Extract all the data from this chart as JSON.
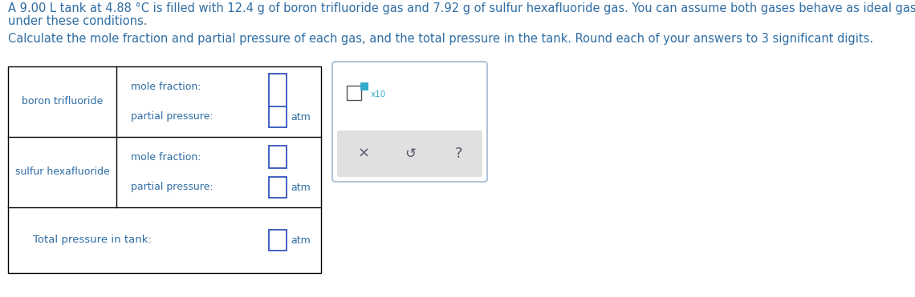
{
  "title_line1": "A 9.00 L tank at 4.88 °C is filled with 12.4 g of boron trifluoride gas and 7.92 g of sulfur hexafluoride gas. You can assume both gases behave as ideal gases",
  "title_line2": "under these conditions.",
  "subtitle": "Calculate the mole fraction and partial pressure of each gas, and the total pressure in the tank. Round each of your answers to 3 significant digits.",
  "row1_label": "boron trifluoride",
  "row1_mole_fraction_label": "mole fraction:",
  "row1_partial_pressure_label": "partial pressure:",
  "row2_label": "sulfur hexafluoride",
  "row2_mole_fraction_label": "mole fraction:",
  "row2_partial_pressure_label": "partial pressure:",
  "total_label": "Total pressure in tank:",
  "atm_label": "atm",
  "text_color": "#2e6da4",
  "table_border_color": "#000000",
  "input_box_color": "#3355bb",
  "popup_bg": "#ffffff",
  "popup_border": "#aabbcc",
  "popup_button_bg": "#e0e0e0",
  "x10_color": "#33aacc",
  "font_size_body": 10.5,
  "font_size_table": 9.0,
  "font_size_total": 9.5
}
